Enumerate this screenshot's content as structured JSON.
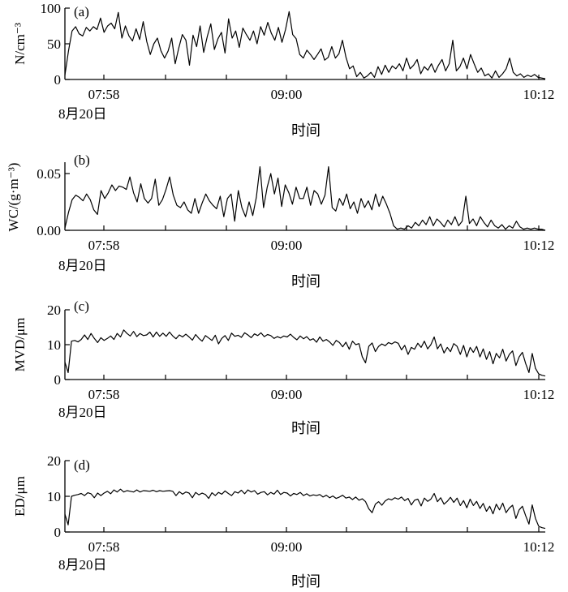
{
  "chart_data": [
    {
      "type": "line",
      "panel_label": "(a)",
      "ylabel": "N/cm⁻³",
      "xlabel": "时间",
      "date_label": "8月20日",
      "ylim": [
        0,
        100
      ],
      "yticks": [
        "0",
        "50",
        "100"
      ],
      "ytick_values": [
        0,
        50,
        100
      ],
      "xticks": [
        "07:58",
        "09:00",
        "10:12"
      ],
      "grid": false,
      "series": [
        {
          "values": [
            6,
            40,
            68,
            74,
            64,
            61,
            73,
            68,
            74,
            70,
            86,
            66,
            75,
            79,
            71,
            94,
            58,
            75,
            61,
            54,
            71,
            56,
            81,
            53,
            35,
            50,
            58,
            40,
            30,
            40,
            58,
            22,
            44,
            63,
            55,
            20,
            62,
            46,
            75,
            38,
            60,
            78,
            42,
            57,
            66,
            37,
            85,
            58,
            68,
            45,
            72,
            63,
            55,
            68,
            50,
            74,
            62,
            80,
            65,
            55,
            73,
            52,
            70,
            95,
            63,
            57,
            35,
            30,
            41,
            35,
            28,
            35,
            43,
            27,
            31,
            46,
            30,
            36,
            55,
            31,
            15,
            19,
            4,
            10,
            2,
            5,
            10,
            3,
            18,
            7,
            20,
            10,
            19,
            15,
            22,
            12,
            30,
            15,
            20,
            28,
            8,
            18,
            13,
            22,
            10,
            20,
            28,
            12,
            22,
            55,
            12,
            18,
            30,
            15,
            35,
            22,
            10,
            16,
            5,
            8,
            2,
            12,
            3,
            8,
            15,
            30,
            10,
            5,
            8,
            3,
            6,
            4,
            7,
            3,
            2,
            1
          ]
        }
      ]
    },
    {
      "type": "line",
      "panel_label": "(b)",
      "ylabel": "WC/(g·m⁻³)",
      "xlabel": "时间",
      "date_label": "8月20日",
      "ylim": [
        0,
        0.06
      ],
      "yticks": [
        "0.00",
        "0.05"
      ],
      "ytick_values": [
        0,
        0.05
      ],
      "xticks": [
        "07:58",
        "09:00",
        "10:12"
      ],
      "grid": false,
      "series": [
        {
          "values": [
            0.002,
            0.016,
            0.027,
            0.031,
            0.029,
            0.026,
            0.032,
            0.027,
            0.018,
            0.014,
            0.035,
            0.028,
            0.033,
            0.04,
            0.035,
            0.039,
            0.038,
            0.036,
            0.047,
            0.033,
            0.025,
            0.041,
            0.028,
            0.024,
            0.028,
            0.045,
            0.022,
            0.027,
            0.036,
            0.047,
            0.031,
            0.022,
            0.02,
            0.025,
            0.018,
            0.015,
            0.028,
            0.015,
            0.024,
            0.032,
            0.026,
            0.022,
            0.019,
            0.03,
            0.012,
            0.028,
            0.032,
            0.008,
            0.035,
            0.02,
            0.012,
            0.025,
            0.013,
            0.029,
            0.056,
            0.02,
            0.038,
            0.05,
            0.032,
            0.046,
            0.021,
            0.04,
            0.033,
            0.023,
            0.038,
            0.028,
            0.028,
            0.038,
            0.022,
            0.035,
            0.032,
            0.023,
            0.031,
            0.056,
            0.02,
            0.017,
            0.028,
            0.022,
            0.032,
            0.019,
            0.025,
            0.015,
            0.028,
            0.02,
            0.026,
            0.018,
            0.032,
            0.021,
            0.03,
            0.023,
            0.015,
            0.004,
            0.001,
            0.002,
            0.001,
            0.004,
            0.002,
            0.007,
            0.004,
            0.009,
            0.005,
            0.012,
            0.004,
            0.01,
            0.007,
            0.003,
            0.009,
            0.005,
            0.012,
            0.004,
            0.008,
            0.03,
            0.006,
            0.01,
            0.004,
            0.012,
            0.007,
            0.003,
            0.009,
            0.004,
            0.002,
            0.005,
            0.001,
            0.004,
            0.002,
            0.008,
            0.003,
            0.001,
            0.002,
            0.001,
            0.002,
            0.001,
            0.001,
            0.0
          ]
        }
      ]
    },
    {
      "type": "line",
      "panel_label": "(c)",
      "ylabel": "MVD/μm",
      "xlabel": "时间",
      "date_label": "8月20日",
      "ylim": [
        0,
        20
      ],
      "yticks": [
        "0",
        "10",
        "20"
      ],
      "ytick_values": [
        0,
        10,
        20
      ],
      "xticks": [
        "07:58",
        "09:00",
        "10:12"
      ],
      "grid": false,
      "series": [
        {
          "values": [
            5,
            2,
            11,
            11.2,
            10.8,
            11.5,
            12.8,
            11.5,
            13.2,
            11.8,
            10.6,
            12,
            11.2,
            11.8,
            12.5,
            11.5,
            13.2,
            12.2,
            14.2,
            13.2,
            12.5,
            13.8,
            12.3,
            13.2,
            12.6,
            12.8,
            13.6,
            12.2,
            13.6,
            12.4,
            13.3,
            12.4,
            13.6,
            12.5,
            11.7,
            12.8,
            12.2,
            13,
            12.2,
            11.3,
            12.9,
            11.8,
            11,
            12.6,
            11.9,
            11.2,
            12.7,
            10.2,
            11.8,
            12.6,
            11.2,
            13.3,
            12.4,
            12.7,
            12.1,
            13.4,
            12.8,
            12,
            13.1,
            12.6,
            13.4,
            12.3,
            12.9,
            12.6,
            11.8,
            12.3,
            11.9,
            12.5,
            12.2,
            13,
            12.1,
            11.4,
            12.5,
            11.7,
            12.3,
            11.3,
            11.7,
            10.7,
            12.2,
            11,
            11.5,
            10.8,
            9.8,
            11.2,
            10.6,
            9.4,
            10.7,
            8.7,
            11,
            10,
            10.3,
            6.5,
            4.8,
            9.5,
            10.5,
            8,
            9.5,
            10.2,
            9.7,
            10.6,
            10.2,
            10.8,
            10.4,
            8.5,
            9.8,
            7.2,
            9.2,
            8.7,
            10.4,
            9.2,
            11,
            8.8,
            10,
            12.2,
            8.8,
            10.2,
            7.6,
            9.2,
            8,
            10.3,
            9.5,
            7.2,
            9.8,
            6.5,
            9.2,
            7.8,
            9.5,
            6.5,
            8.8,
            5.8,
            8,
            4.5,
            7.5,
            6.2,
            8.7,
            5.3,
            7.2,
            8.2,
            4,
            6.5,
            7.8,
            4.6,
            2,
            7.5,
            3.2,
            1.6,
            1.2,
            1
          ]
        }
      ]
    },
    {
      "type": "line",
      "panel_label": "(d)",
      "ylabel": "ED/μm",
      "xlabel": "时间",
      "date_label": "8月20日",
      "ylim": [
        0,
        20
      ],
      "yticks": [
        "0",
        "10",
        "20"
      ],
      "ytick_values": [
        0,
        10,
        20
      ],
      "xticks": [
        "07:58",
        "09:00",
        "10:12"
      ],
      "grid": false,
      "series": [
        {
          "values": [
            5,
            2,
            10,
            10.3,
            10.5,
            10.8,
            10.2,
            11,
            10.7,
            9.6,
            10.9,
            10.2,
            10.9,
            11.4,
            10.7,
            11.8,
            11.2,
            12,
            11.2,
            11.6,
            11.4,
            11.2,
            11.8,
            11.2,
            11.6,
            11.5,
            11.4,
            11.7,
            11.3,
            11.6,
            11.4,
            11.5,
            11.6,
            11.4,
            10.2,
            11.3,
            10.6,
            11.2,
            10.9,
            9.6,
            11.1,
            10.4,
            10.9,
            10.5,
            9.4,
            11,
            10.2,
            11.1,
            10.6,
            11.5,
            10.8,
            10.2,
            11.3,
            10.9,
            11.7,
            10.7,
            11.8,
            11.2,
            11.6,
            10.6,
            11.1,
            11.3,
            10.4,
            11.1,
            10.6,
            11.7,
            10.5,
            11.1,
            10.9,
            10.1,
            10.8,
            10.5,
            11.1,
            10.2,
            10.7,
            10.1,
            10.4,
            10.2,
            10.5,
            9.8,
            10.3,
            9.6,
            10.1,
            9.4,
            9.8,
            10.3,
            9.5,
            9.8,
            9.1,
            9.8,
            8.9,
            9.3,
            8.5,
            6.5,
            5.4,
            7.8,
            8.5,
            7.5,
            8.7,
            9.3,
            9,
            9.6,
            9.2,
            9.8,
            8.8,
            9.4,
            7.6,
            8.9,
            9.2,
            7.3,
            9.5,
            8.6,
            9.2,
            10.8,
            8.5,
            9.6,
            7.8,
            8.6,
            9.7,
            8.3,
            9.5,
            7.4,
            8.8,
            6.8,
            9.2,
            7.4,
            8.6,
            6.6,
            8,
            5.8,
            7.2,
            5.1,
            7.8,
            6.2,
            8.1,
            5.4,
            6.7,
            7.5,
            3.8,
            6.2,
            7.2,
            4.6,
            2.2,
            7.6,
            3.8,
            1.6,
            1.2,
            1
          ]
        }
      ]
    }
  ]
}
